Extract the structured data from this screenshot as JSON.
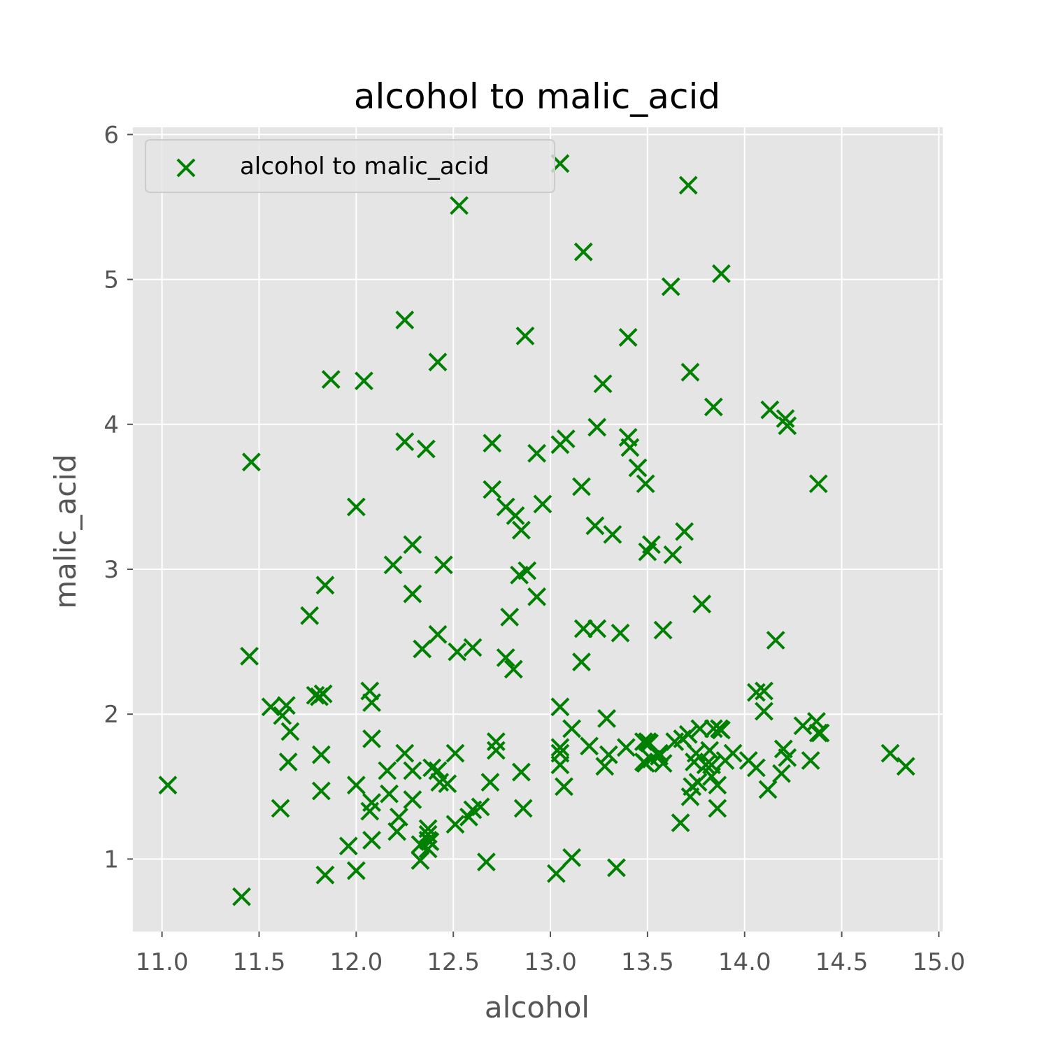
{
  "chart_data": {
    "type": "scatter",
    "title": "alcohol to malic_acid",
    "xlabel": "alcohol",
    "ylabel": "malic_acid",
    "xlim": [
      10.85,
      15.02
    ],
    "ylim": [
      0.5,
      6.05
    ],
    "xticks": [
      "11.0",
      "11.5",
      "12.0",
      "12.5",
      "13.0",
      "13.5",
      "14.0",
      "14.5",
      "15.0"
    ],
    "yticks": [
      "1",
      "2",
      "3",
      "4",
      "5",
      "6"
    ],
    "grid": true,
    "legend_position": "top-left",
    "marker": "x",
    "colors": {
      "series": "#008000",
      "plot_bg": "#e5e5e5",
      "grid": "#ffffff",
      "tick_text": "#555555"
    },
    "series": [
      {
        "name": "alcohol to malic_acid",
        "points": [
          [
            11.03,
            1.51
          ],
          [
            11.41,
            0.74
          ],
          [
            11.45,
            2.4
          ],
          [
            11.46,
            3.74
          ],
          [
            11.56,
            2.05
          ],
          [
            11.61,
            1.35
          ],
          [
            11.62,
            1.99
          ],
          [
            11.64,
            2.06
          ],
          [
            11.65,
            1.67
          ],
          [
            11.66,
            1.88
          ],
          [
            11.76,
            2.68
          ],
          [
            11.79,
            2.13
          ],
          [
            11.81,
            2.12
          ],
          [
            11.82,
            1.72
          ],
          [
            11.82,
            1.47
          ],
          [
            11.83,
            2.14
          ],
          [
            11.84,
            0.89
          ],
          [
            11.84,
            2.89
          ],
          [
            11.87,
            4.31
          ],
          [
            11.96,
            1.09
          ],
          [
            12.0,
            0.92
          ],
          [
            12.0,
            3.43
          ],
          [
            12.0,
            1.51
          ],
          [
            12.04,
            4.3
          ],
          [
            12.07,
            2.16
          ],
          [
            12.07,
            1.33
          ],
          [
            12.08,
            1.13
          ],
          [
            12.08,
            1.39
          ],
          [
            12.08,
            2.08
          ],
          [
            12.08,
            1.83
          ],
          [
            12.16,
            1.61
          ],
          [
            12.17,
            1.45
          ],
          [
            12.19,
            3.03
          ],
          [
            12.21,
            1.19
          ],
          [
            12.22,
            1.29
          ],
          [
            12.25,
            4.72
          ],
          [
            12.25,
            3.88
          ],
          [
            12.25,
            1.73
          ],
          [
            12.29,
            1.61
          ],
          [
            12.29,
            3.17
          ],
          [
            12.29,
            2.83
          ],
          [
            12.29,
            1.41
          ],
          [
            12.33,
            1.1
          ],
          [
            12.33,
            0.99
          ],
          [
            12.34,
            2.45
          ],
          [
            12.36,
            3.83
          ],
          [
            12.37,
            1.17
          ],
          [
            12.37,
            1.13
          ],
          [
            12.37,
            1.21
          ],
          [
            12.37,
            1.07
          ],
          [
            12.38,
            1.12
          ],
          [
            12.39,
            1.63
          ],
          [
            12.42,
            2.55
          ],
          [
            12.42,
            4.43
          ],
          [
            12.42,
            1.61
          ],
          [
            12.43,
            1.53
          ],
          [
            12.45,
            3.03
          ],
          [
            12.47,
            1.52
          ],
          [
            12.51,
            1.73
          ],
          [
            12.51,
            1.24
          ],
          [
            12.52,
            2.43
          ],
          [
            12.53,
            5.51
          ],
          [
            12.58,
            1.29
          ],
          [
            12.6,
            2.46
          ],
          [
            12.6,
            1.34
          ],
          [
            12.64,
            1.36
          ],
          [
            12.67,
            0.98
          ],
          [
            12.69,
            1.53
          ],
          [
            12.7,
            3.55
          ],
          [
            12.7,
            3.87
          ],
          [
            12.72,
            1.81
          ],
          [
            12.72,
            1.75
          ],
          [
            12.77,
            3.43
          ],
          [
            12.77,
            2.39
          ],
          [
            12.79,
            2.67
          ],
          [
            12.81,
            2.31
          ],
          [
            12.82,
            3.37
          ],
          [
            12.84,
            2.96
          ],
          [
            12.85,
            1.6
          ],
          [
            12.85,
            3.27
          ],
          [
            12.86,
            1.35
          ],
          [
            12.87,
            4.61
          ],
          [
            12.88,
            2.99
          ],
          [
            12.93,
            3.8
          ],
          [
            12.93,
            2.81
          ],
          [
            12.96,
            3.45
          ],
          [
            13.03,
            0.9
          ],
          [
            13.05,
            5.8
          ],
          [
            13.05,
            2.05
          ],
          [
            13.05,
            1.77
          ],
          [
            13.05,
            1.73
          ],
          [
            13.05,
            1.65
          ],
          [
            13.05,
            3.86
          ],
          [
            13.07,
            1.5
          ],
          [
            13.08,
            3.9
          ],
          [
            13.11,
            1.01
          ],
          [
            13.11,
            1.9
          ],
          [
            13.16,
            3.57
          ],
          [
            13.16,
            2.36
          ],
          [
            13.17,
            5.19
          ],
          [
            13.17,
            2.59
          ],
          [
            13.2,
            1.78
          ],
          [
            13.23,
            3.3
          ],
          [
            13.24,
            2.59
          ],
          [
            13.24,
            3.98
          ],
          [
            13.27,
            4.28
          ],
          [
            13.28,
            1.64
          ],
          [
            13.29,
            1.97
          ],
          [
            13.3,
            1.72
          ],
          [
            13.32,
            3.24
          ],
          [
            13.34,
            0.94
          ],
          [
            13.36,
            2.56
          ],
          [
            13.39,
            1.77
          ],
          [
            13.4,
            4.6
          ],
          [
            13.4,
            3.91
          ],
          [
            13.41,
            3.84
          ],
          [
            13.45,
            3.7
          ],
          [
            13.48,
            1.81
          ],
          [
            13.48,
            1.67
          ],
          [
            13.49,
            3.59
          ],
          [
            13.49,
            1.66
          ],
          [
            13.5,
            3.12
          ],
          [
            13.5,
            1.81
          ],
          [
            13.51,
            1.8
          ],
          [
            13.52,
            3.17
          ],
          [
            13.52,
            1.69
          ],
          [
            13.56,
            1.71
          ],
          [
            13.56,
            1.73
          ],
          [
            13.58,
            2.58
          ],
          [
            13.58,
            1.66
          ],
          [
            13.62,
            4.95
          ],
          [
            13.63,
            3.1
          ],
          [
            13.64,
            1.81
          ],
          [
            13.67,
            1.25
          ],
          [
            13.68,
            1.83
          ],
          [
            13.69,
            3.26
          ],
          [
            13.71,
            1.86
          ],
          [
            13.71,
            5.65
          ],
          [
            13.72,
            1.43
          ],
          [
            13.72,
            4.36
          ],
          [
            13.73,
            1.5
          ],
          [
            13.74,
            1.67
          ],
          [
            13.75,
            1.73
          ],
          [
            13.76,
            1.53
          ],
          [
            13.77,
            1.9
          ],
          [
            13.78,
            2.76
          ],
          [
            13.8,
            1.65
          ],
          [
            13.82,
            1.75
          ],
          [
            13.83,
            1.57
          ],
          [
            13.83,
            1.65
          ],
          [
            13.84,
            4.12
          ],
          [
            13.84,
            1.9
          ],
          [
            13.86,
            1.35
          ],
          [
            13.86,
            1.51
          ],
          [
            13.87,
            1.9
          ],
          [
            13.88,
            5.04
          ],
          [
            13.88,
            1.89
          ],
          [
            13.9,
            1.68
          ],
          [
            13.94,
            1.73
          ],
          [
            14.02,
            1.68
          ],
          [
            14.06,
            2.15
          ],
          [
            14.06,
            1.63
          ],
          [
            14.1,
            2.16
          ],
          [
            14.1,
            2.02
          ],
          [
            14.12,
            1.48
          ],
          [
            14.13,
            4.1
          ],
          [
            14.16,
            2.51
          ],
          [
            14.19,
            1.59
          ],
          [
            14.2,
            1.76
          ],
          [
            14.21,
            4.04
          ],
          [
            14.22,
            3.99
          ],
          [
            14.22,
            1.7
          ],
          [
            14.3,
            1.92
          ],
          [
            14.34,
            1.68
          ],
          [
            14.37,
            1.95
          ],
          [
            14.38,
            1.87
          ],
          [
            14.38,
            3.59
          ],
          [
            14.39,
            1.87
          ],
          [
            14.75,
            1.73
          ],
          [
            14.83,
            1.64
          ]
        ]
      }
    ]
  }
}
